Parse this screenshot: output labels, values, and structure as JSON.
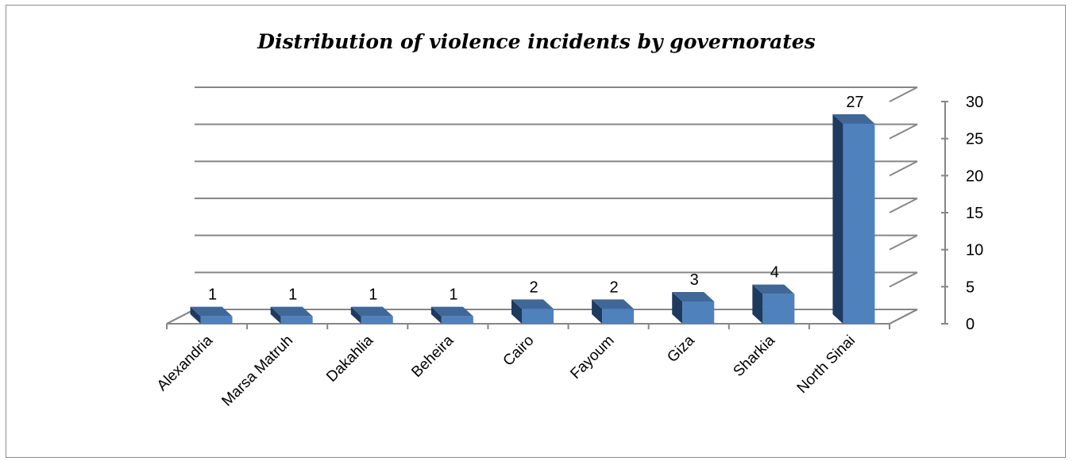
{
  "chart_data": {
    "type": "bar",
    "title": "Distribution of violence incidents by governorates",
    "categories": [
      "Alexandria",
      "Marsa Matruh",
      "Dakahlia",
      "Beheira",
      "Cairo",
      "Fayoum",
      "Giza",
      "Sharkia",
      "North Sinai"
    ],
    "values": [
      1,
      1,
      1,
      1,
      2,
      2,
      3,
      4,
      27
    ],
    "data_labels": [
      "1",
      "1",
      "1",
      "1",
      "2",
      "2",
      "3",
      "4",
      "27"
    ],
    "xlabel": "",
    "ylabel": "",
    "ylim": [
      0,
      30
    ],
    "yticks": [
      "0",
      "5",
      "10",
      "15",
      "20",
      "25",
      "30"
    ],
    "grid": true,
    "style": "3d-column",
    "y_axis_side": "right",
    "legend": "none",
    "colors": {
      "front": "#4f81bd",
      "top": "#3f6898",
      "side": "#1f3a5f",
      "grid": "#868686"
    }
  }
}
